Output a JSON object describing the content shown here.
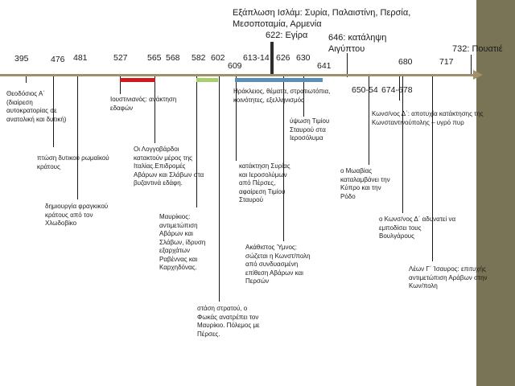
{
  "colors": {
    "axis": "#a08f6a",
    "sidebar": "#7a7457",
    "red_bar": "#d0191e",
    "green_bar": "#a8d06a",
    "blue_bar": "#5a8fb8"
  },
  "headings": {
    "islam_expansion": "Εξάπλωση Ισλάμ: Συρία, Παλαιστίνη, Περσία, Μεσοποταμία, Αρμενία",
    "hijra": "622: Εγίρα",
    "egypt": "646: κατάληψη Αιγύπτου",
    "poitiers": "732: Πουατιέ"
  },
  "years": {
    "y395": "395",
    "y476": "476",
    "y481": "481",
    "y527": "527",
    "y565": "565",
    "y568": "568",
    "y582": "582",
    "y602": "602",
    "y609": "609",
    "y613": "613-14",
    "y626": "626",
    "y630": "630",
    "y641": "641",
    "y650": "650-54",
    "y674": "674-678",
    "y680": "680",
    "y717": "717"
  },
  "events": {
    "theodosius": "Θεοδόσιος Α΄ (διαίρεση αυτοκρατορίας σε ανατολική και δυτική)",
    "fall_west": "πτώση δυτικού ρωμαϊκού κράτους",
    "frankish": "δημιουργία φραγκικού κράτους από τον Χλωδοβίκο",
    "justinian": "Ιουστινιανός: ανάκτηση εδαφών",
    "lombards": "Οι Λογγοβάρδοι κατακτούν μέρος της Ιταλίας.Επιδρομές Αβάρων και Σλάβων στα βυζαντινά εδάφη.",
    "maurice": "Μαυρίκιος: αντιμετώπιση Αβάρων και Σλάβων, ίδρυση εξαρχάτων Ραβέννας και Καρχηδόνας.",
    "phocas": "στάση στρατού, ο Φωκάς ανατρέπει τον Μαυρίκιο. Πόλεμος με Πέρσες.",
    "heraclius": "Ηράκλειος, θέματα, στρατιωτόπια, κοινότητες, εξελληνισμός",
    "persian_conquest": "κατάκτηση Συρίας και Ιεροσολύμων από Πέρσες, αφαίρεση Τιμίου Σταυρού",
    "akathist": "Ακάθιστος Ύμνος: σώζεται η Κωνστ/πολη από συνδυασμένη επίθεση Αβάρων και Περσών",
    "holy_cross": "ύψωση Τιμίου Σταυρού στα Ιεροσόλυμα",
    "muawiya": "ο Μωαβίας καταλαμβάνει την Κύπρο και την Ρόδο",
    "constantine4": "Κωνσ/νος Δ΄: αποτυχία κατάκτησης της Κωνσταντινούπολης – υγρό πυρ",
    "constantine4b": "ο Κωνσ/νος Δ΄ αδυνατεί να εμποδίσει τους Βουλγάρους",
    "leo3": "Λέων Γ΄ Ίσαυρος: επιτυχής αντιμετώπιση Αράβων στην Κων/πολη"
  }
}
